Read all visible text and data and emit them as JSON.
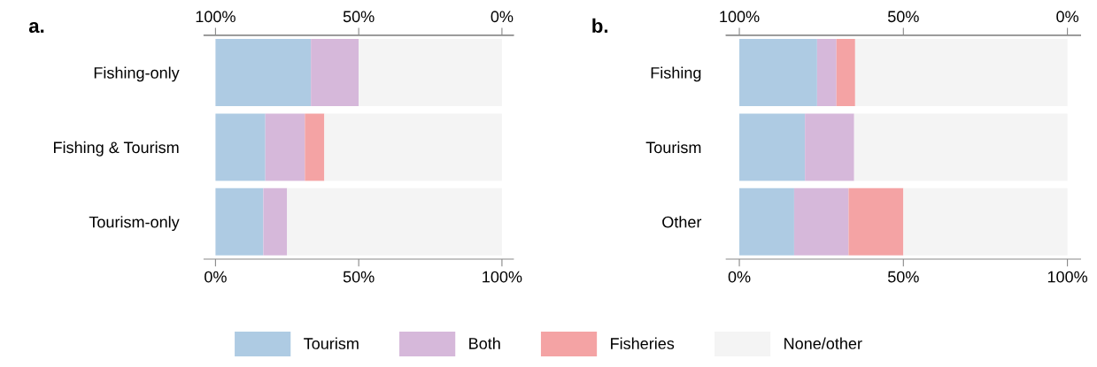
{
  "chart_data": [
    {
      "type": "bar",
      "orientation": "horizontal",
      "stacked": true,
      "title": "a.",
      "categories": [
        "Fishing-only",
        "Fishing & Tourism",
        "Tourism-only"
      ],
      "series": [
        {
          "name": "Tourism",
          "color": "#aecbe3",
          "values": [
            33.3,
            17.4,
            16.7
          ]
        },
        {
          "name": "Both",
          "color": "#d6b8da",
          "values": [
            16.7,
            13.8,
            8.3
          ]
        },
        {
          "name": "Fisheries",
          "color": "#f4a3a4",
          "values": [
            0,
            6.8,
            0
          ]
        },
        {
          "name": "None/other",
          "color": "#f4f4f4",
          "values": [
            50,
            62,
            75
          ]
        }
      ],
      "xlim": [
        -4,
        104
      ],
      "xticks": [
        {
          "value": 0,
          "label": "0%"
        },
        {
          "value": 50,
          "label": "50%"
        },
        {
          "value": 100,
          "label": "100%"
        }
      ],
      "x2lim": [
        104,
        -4
      ],
      "x2ticks": [
        {
          "value": 100,
          "label": "100%"
        },
        {
          "value": 50,
          "label": "50%"
        },
        {
          "value": 0,
          "label": "0%"
        }
      ],
      "grid": false,
      "legend": "bottom"
    },
    {
      "type": "bar",
      "orientation": "horizontal",
      "stacked": true,
      "title": "b.",
      "categories": [
        "Fishing",
        "Tourism",
        "Other"
      ],
      "series": [
        {
          "name": "Tourism",
          "color": "#aecbe3",
          "values": [
            23.7,
            20.0,
            16.7
          ]
        },
        {
          "name": "Both",
          "color": "#d6b8da",
          "values": [
            5.9,
            15.0,
            16.6
          ]
        },
        {
          "name": "Fisheries",
          "color": "#f4a3a4",
          "values": [
            5.7,
            0,
            16.7
          ]
        },
        {
          "name": "None/other",
          "color": "#f4f4f4",
          "values": [
            64.7,
            65,
            50
          ]
        }
      ],
      "xlim": [
        -4,
        104
      ],
      "xticks": [
        {
          "value": 0,
          "label": "0%"
        },
        {
          "value": 50,
          "label": "50%"
        },
        {
          "value": 100,
          "label": "100%"
        }
      ],
      "x2lim": [
        104,
        -4
      ],
      "x2ticks": [
        {
          "value": 100,
          "label": "100%"
        },
        {
          "value": 50,
          "label": "50%"
        },
        {
          "value": 0,
          "label": "0%"
        }
      ],
      "grid": false,
      "legend": "bottom"
    }
  ]
}
